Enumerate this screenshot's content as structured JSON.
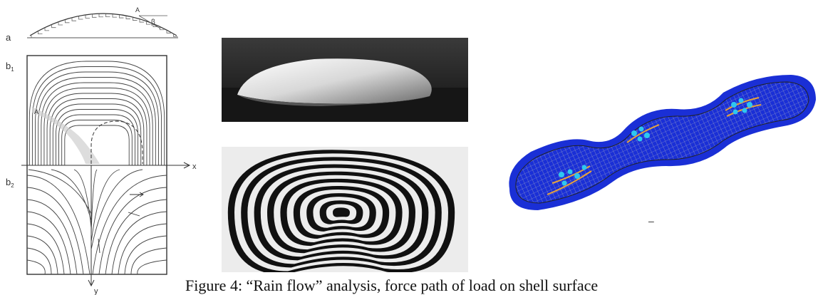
{
  "figure": {
    "caption": "Figure 4: “Rain flow” analysis, force path of load on shell surface",
    "diagram": {
      "label_a": "a",
      "label_b1": "b",
      "label_b1_sub": "1",
      "label_b2": "b",
      "label_b2_sub": "2",
      "label_x": "x",
      "label_y": "y",
      "label_A": "A",
      "label_beta": "β"
    },
    "mesh_minus": "–"
  },
  "colors": {
    "mesh_blue": "#1a2fd6",
    "flow_orange": "#e8a23a",
    "arrow_cyan": "#2ec7f0"
  }
}
